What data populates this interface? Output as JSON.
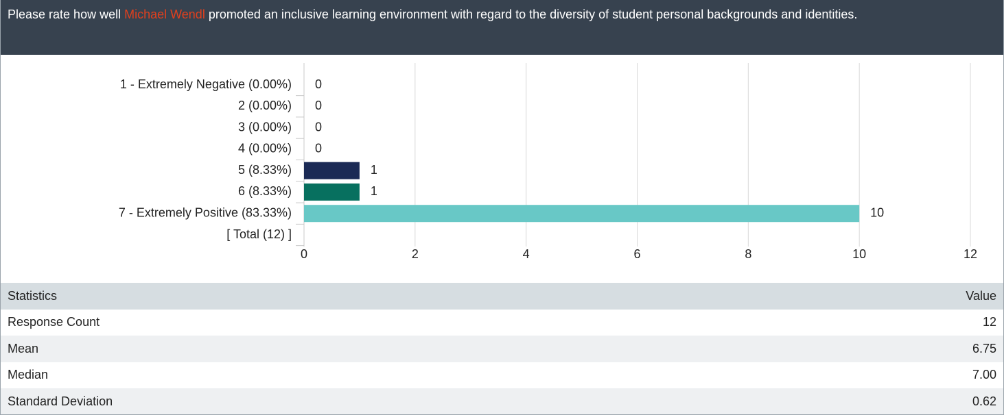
{
  "header": {
    "text_before": "Please rate how well ",
    "name": "Michael Wendl",
    "text_after": " promoted an inclusive learning environment with regard to the diversity of student personal backgrounds and identities."
  },
  "chart_data": {
    "type": "bar",
    "orientation": "horizontal",
    "categories": [
      "1 - Extremely Negative (0.00%)",
      "2 (0.00%)",
      "3 (0.00%)",
      "4 (0.00%)",
      "5 (8.33%)",
      "6 (8.33%)",
      "7 - Extremely Positive (83.33%)",
      "[ Total (12) ]"
    ],
    "values": [
      0,
      0,
      0,
      0,
      1,
      1,
      10,
      null
    ],
    "colors": [
      null,
      null,
      null,
      null,
      "#1b2a55",
      "#07705f",
      "#68c8c6",
      null
    ],
    "xlim": [
      0,
      12
    ],
    "xticks": [
      0,
      2,
      4,
      6,
      8,
      10,
      12
    ],
    "grid": true
  },
  "table": {
    "header": [
      "Statistics",
      "Value"
    ],
    "rows": [
      [
        "Response Count",
        "12"
      ],
      [
        "Mean",
        "6.75"
      ],
      [
        "Median",
        "7.00"
      ],
      [
        "Standard Deviation",
        "0.62"
      ]
    ]
  }
}
